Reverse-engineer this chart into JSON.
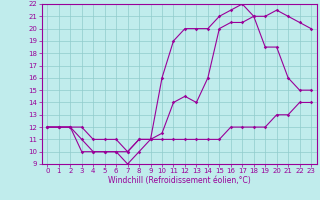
{
  "xlabel": "Windchill (Refroidissement éolien,°C)",
  "x_values": [
    0,
    1,
    2,
    3,
    4,
    5,
    6,
    7,
    8,
    9,
    10,
    11,
    12,
    13,
    14,
    15,
    16,
    17,
    18,
    19,
    20,
    21,
    22,
    23
  ],
  "line1": [
    12,
    12,
    12,
    12,
    11,
    11,
    11,
    10,
    11,
    11,
    11,
    11,
    11,
    11,
    11,
    11,
    12,
    12,
    12,
    12,
    13,
    13,
    14,
    14
  ],
  "line2": [
    12,
    12,
    12,
    11,
    10,
    10,
    10,
    9,
    10,
    11,
    16,
    19,
    20,
    20,
    20,
    21,
    21.5,
    22,
    21,
    18.5,
    18.5,
    16,
    15,
    15
  ],
  "line3": [
    12,
    12,
    12,
    10,
    10,
    10,
    10,
    10,
    11,
    11,
    11.5,
    14,
    14.5,
    14,
    16,
    20,
    20.5,
    20.5,
    21,
    21,
    21.5,
    21,
    20.5,
    20
  ],
  "ylim": [
    9,
    22
  ],
  "xlim": [
    -0.5,
    23.5
  ],
  "yticks": [
    9,
    10,
    11,
    12,
    13,
    14,
    15,
    16,
    17,
    18,
    19,
    20,
    21,
    22
  ],
  "xticks": [
    0,
    1,
    2,
    3,
    4,
    5,
    6,
    7,
    8,
    9,
    10,
    11,
    12,
    13,
    14,
    15,
    16,
    17,
    18,
    19,
    20,
    21,
    22,
    23
  ],
  "line_color": "#990099",
  "bg_color": "#c0ecec",
  "grid_color": "#90cccc",
  "marker": "D",
  "marker_size": 1.8,
  "line_width": 0.8,
  "tick_fontsize": 5.0,
  "xlabel_fontsize": 5.5
}
